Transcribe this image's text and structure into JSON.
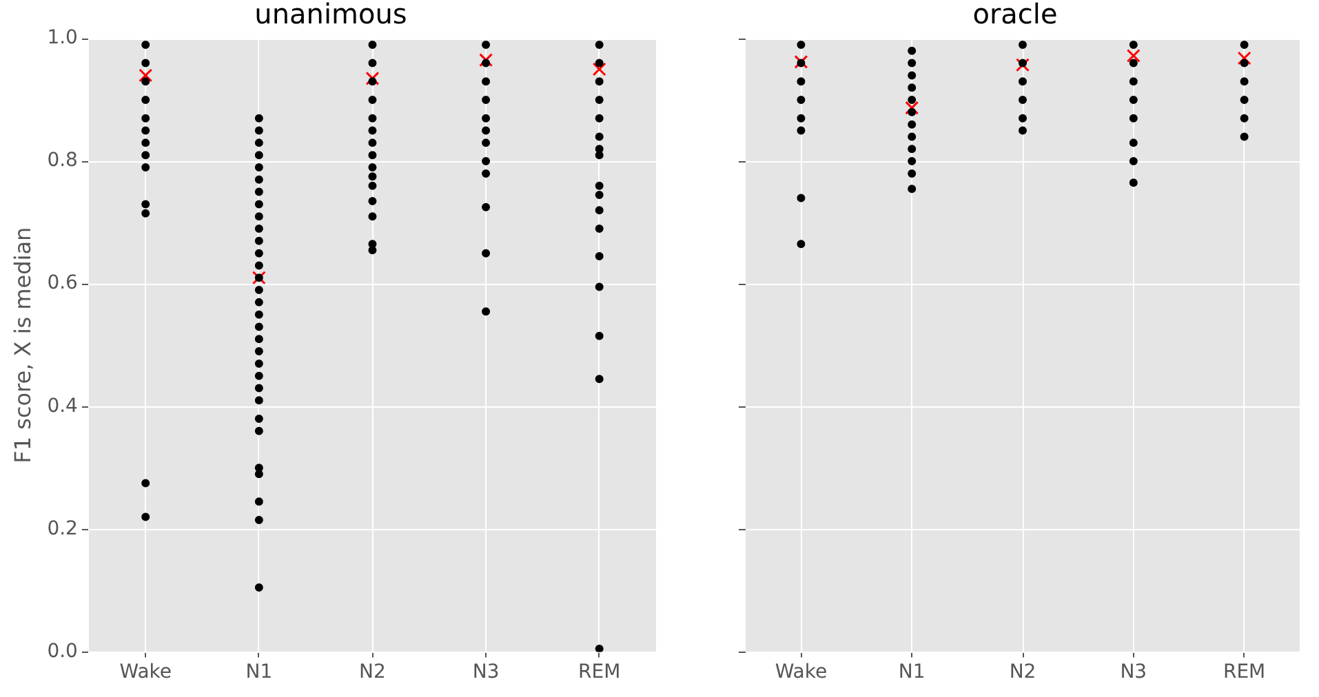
{
  "chart_data": [
    {
      "type": "scatter",
      "title": "unanimous",
      "ylabel": "F1 score, X is median",
      "categories": [
        "Wake",
        "N1",
        "N2",
        "N3",
        "REM"
      ],
      "ylim": [
        0,
        1
      ],
      "yticks": [
        {
          "value": 0,
          "label": "0.0"
        },
        0.2,
        0.4,
        0.6,
        0.8,
        {
          "value": 1,
          "label": "1.0"
        }
      ],
      "grid": true,
      "legend": false,
      "series": [
        {
          "color": "#000000",
          "marker": "circle",
          "x": [
            "Wake",
            "Wake",
            "Wake",
            "Wake",
            "Wake",
            "Wake",
            "Wake",
            "Wake",
            "Wake",
            "Wake",
            "Wake",
            "Wake",
            "Wake"
          ],
          "values": [
            0.99,
            0.96,
            0.93,
            0.9,
            0.87,
            0.85,
            0.83,
            0.81,
            0.79,
            0.73,
            0.715,
            0.275,
            0.22
          ]
        },
        {
          "color": "#000000",
          "marker": "circle",
          "x": [
            "N1",
            "N1",
            "N1",
            "N1",
            "N1",
            "N1",
            "N1",
            "N1",
            "N1",
            "N1",
            "N1",
            "N1",
            "N1",
            "N1",
            "N1",
            "N1",
            "N1",
            "N1",
            "N1",
            "N1",
            "N1",
            "N1",
            "N1",
            "N1",
            "N1",
            "N1",
            "N1",
            "N1",
            "N1",
            "N1",
            "N1"
          ],
          "values": [
            0.87,
            0.85,
            0.83,
            0.81,
            0.79,
            0.77,
            0.75,
            0.73,
            0.71,
            0.69,
            0.67,
            0.65,
            0.63,
            0.61,
            0.59,
            0.57,
            0.55,
            0.53,
            0.51,
            0.49,
            0.47,
            0.45,
            0.43,
            0.41,
            0.38,
            0.36,
            0.3,
            0.29,
            0.245,
            0.215,
            0.105
          ]
        },
        {
          "color": "#000000",
          "marker": "circle",
          "x": [
            "N2",
            "N2",
            "N2",
            "N2",
            "N2",
            "N2",
            "N2",
            "N2",
            "N2",
            "N2",
            "N2",
            "N2",
            "N2",
            "N2",
            "N2"
          ],
          "values": [
            0.99,
            0.96,
            0.93,
            0.9,
            0.87,
            0.85,
            0.83,
            0.81,
            0.79,
            0.775,
            0.76,
            0.735,
            0.71,
            0.665,
            0.655
          ]
        },
        {
          "color": "#000000",
          "marker": "circle",
          "x": [
            "N3",
            "N3",
            "N3",
            "N3",
            "N3",
            "N3",
            "N3",
            "N3",
            "N3",
            "N3",
            "N3",
            "N3"
          ],
          "values": [
            0.99,
            0.96,
            0.93,
            0.9,
            0.87,
            0.85,
            0.83,
            0.8,
            0.78,
            0.725,
            0.65,
            0.555
          ]
        },
        {
          "color": "#000000",
          "marker": "circle",
          "x": [
            "REM",
            "REM",
            "REM",
            "REM",
            "REM",
            "REM",
            "REM",
            "REM",
            "REM",
            "REM",
            "REM",
            "REM",
            "REM",
            "REM",
            "REM",
            "REM",
            "REM"
          ],
          "values": [
            0.99,
            0.96,
            0.93,
            0.9,
            0.87,
            0.84,
            0.82,
            0.81,
            0.76,
            0.745,
            0.72,
            0.69,
            0.645,
            0.595,
            0.515,
            0.445,
            0.005
          ]
        },
        {
          "color": "#ff0000",
          "marker": "cross",
          "x": [
            "Wake",
            "N1",
            "N2",
            "N3",
            "REM"
          ],
          "values": [
            0.94,
            0.61,
            0.935,
            0.965,
            0.95
          ]
        }
      ]
    },
    {
      "type": "scatter",
      "title": "oracle",
      "categories": [
        "Wake",
        "N1",
        "N2",
        "N3",
        "REM"
      ],
      "ylim": [
        0,
        1
      ],
      "yticks": [
        {
          "value": 0,
          "label": null
        },
        {
          "value": 0.2,
          "label": null
        },
        {
          "value": 0.4,
          "label": null
        },
        {
          "value": 0.6,
          "label": null
        },
        {
          "value": 0.8,
          "label": null
        },
        {
          "value": 1,
          "label": null
        }
      ],
      "grid": true,
      "legend": false,
      "tick_labels": "x",
      "series": [
        {
          "color": "#000000",
          "marker": "circle",
          "x": [
            "Wake",
            "Wake",
            "Wake",
            "Wake",
            "Wake",
            "Wake",
            "Wake",
            "Wake"
          ],
          "values": [
            0.99,
            0.96,
            0.93,
            0.9,
            0.87,
            0.85,
            0.74,
            0.665
          ]
        },
        {
          "color": "#000000",
          "marker": "circle",
          "x": [
            "N1",
            "N1",
            "N1",
            "N1",
            "N1",
            "N1",
            "N1",
            "N1",
            "N1",
            "N1",
            "N1",
            "N1"
          ],
          "values": [
            0.98,
            0.96,
            0.94,
            0.92,
            0.9,
            0.88,
            0.86,
            0.84,
            0.82,
            0.8,
            0.78,
            0.755
          ]
        },
        {
          "color": "#000000",
          "marker": "circle",
          "x": [
            "N2",
            "N2",
            "N2",
            "N2",
            "N2",
            "N2"
          ],
          "values": [
            0.99,
            0.96,
            0.93,
            0.9,
            0.87,
            0.85
          ]
        },
        {
          "color": "#000000",
          "marker": "circle",
          "x": [
            "N3",
            "N3",
            "N3",
            "N3",
            "N3",
            "N3",
            "N3",
            "N3"
          ],
          "values": [
            0.99,
            0.96,
            0.93,
            0.9,
            0.87,
            0.83,
            0.8,
            0.765
          ]
        },
        {
          "color": "#000000",
          "marker": "circle",
          "x": [
            "REM",
            "REM",
            "REM",
            "REM",
            "REM",
            "REM"
          ],
          "values": [
            0.99,
            0.96,
            0.93,
            0.9,
            0.87,
            0.84
          ]
        },
        {
          "color": "#ff0000",
          "marker": "cross",
          "x": [
            "Wake",
            "N1",
            "N2",
            "N3",
            "REM"
          ],
          "values": [
            0.962,
            0.887,
            0.957,
            0.972,
            0.968
          ]
        }
      ]
    }
  ]
}
